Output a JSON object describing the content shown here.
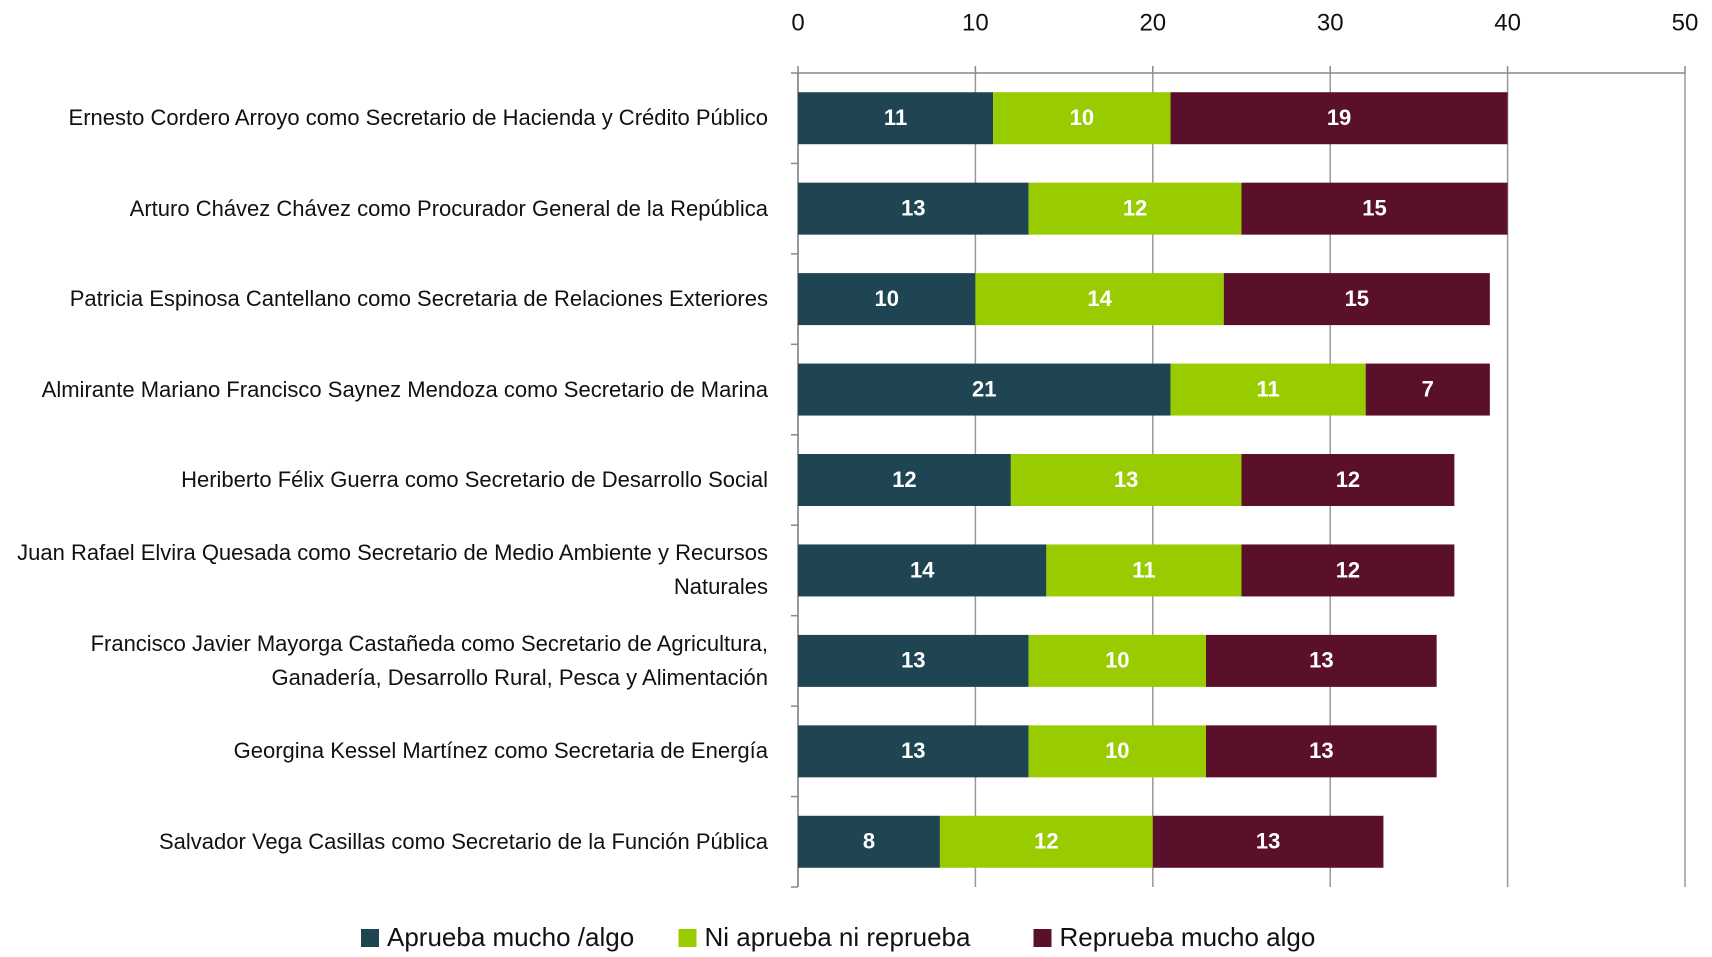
{
  "chart_data": {
    "type": "stacked-bar-horizontal",
    "categories": [
      "Ernesto Cordero Arroyo como Secretario de Hacienda y Crédito Público",
      "Arturo Chávez Chávez como Procurador General de la República",
      "Patricia Espinosa Cantellano como Secretaria de Relaciones Exteriores",
      "Almirante Mariano Francisco Saynez Mendoza como Secretario de Marina",
      "Heriberto Félix Guerra como Secretario de Desarrollo Social",
      "Juan Rafael Elvira Quesada como Secretario de Medio Ambiente y Recursos Naturales",
      "Francisco Javier Mayorga Castañeda como Secretario de Agricultura, Ganadería, Desarrollo Rural, Pesca y Alimentación",
      "Georgina Kessel Martínez como Secretaria de Energía",
      "Salvador Vega Casillas como Secretario de la Función Pública"
    ],
    "series": [
      {
        "name": "Aprueba mucho /algo",
        "color": "#1f4553",
        "values": [
          11,
          13,
          10,
          21,
          12,
          14,
          13,
          13,
          8
        ]
      },
      {
        "name": "Ni aprueba ni reprueba",
        "color": "#99cc00",
        "values": [
          10,
          12,
          14,
          11,
          13,
          11,
          10,
          10,
          12
        ]
      },
      {
        "name": "Reprueba mucho algo",
        "color": "#5a0f2a",
        "values": [
          19,
          15,
          15,
          7,
          12,
          12,
          13,
          13,
          13
        ]
      }
    ],
    "xlim": [
      0,
      50
    ],
    "xticks": [
      0,
      10,
      20,
      30,
      40,
      50
    ],
    "grid": true,
    "legend": "bottom"
  }
}
